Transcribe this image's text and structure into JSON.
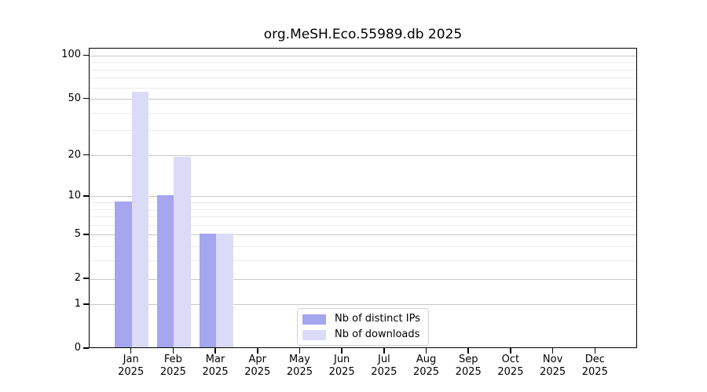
{
  "chart_data": {
    "type": "bar",
    "title": "org.MeSH.Eco.55989.db 2025",
    "x_axis": {
      "categories": [
        "Jan",
        "Feb",
        "Mar",
        "Apr",
        "May",
        "Jun",
        "Jul",
        "Aug",
        "Sep",
        "Oct",
        "Nov",
        "Dec"
      ],
      "year": "2025"
    },
    "y_axis": {
      "scale": "log1p",
      "tick_labels": [
        "100",
        "50",
        "20",
        "10",
        "5",
        "2",
        "1",
        "0"
      ],
      "tick_values": [
        100,
        50,
        20,
        10,
        5,
        2,
        1,
        0
      ],
      "minor_gridline_values": [
        90,
        80,
        70,
        60,
        40,
        30,
        9,
        8,
        7,
        6,
        4,
        3
      ],
      "ylim": [
        0,
        112.4
      ]
    },
    "series": [
      {
        "name": "Nb of distinct IPs",
        "color": "#a5a5f0",
        "values": [
          9,
          10,
          5,
          0,
          0,
          0,
          0,
          0,
          0,
          0,
          0,
          0
        ]
      },
      {
        "name": "Nb of downloads",
        "color": "#dbdbf8",
        "values": [
          55,
          19,
          5,
          0,
          0,
          0,
          0,
          0,
          0,
          0,
          0,
          0
        ]
      }
    ],
    "legend_position": "lower center",
    "grid": true
  },
  "colors": {
    "axis": "#000000",
    "grid_major": "#c8c8c8",
    "grid_minor": "#ebebeb",
    "background": "#ffffff",
    "legend_border": "#d2d2d2"
  }
}
